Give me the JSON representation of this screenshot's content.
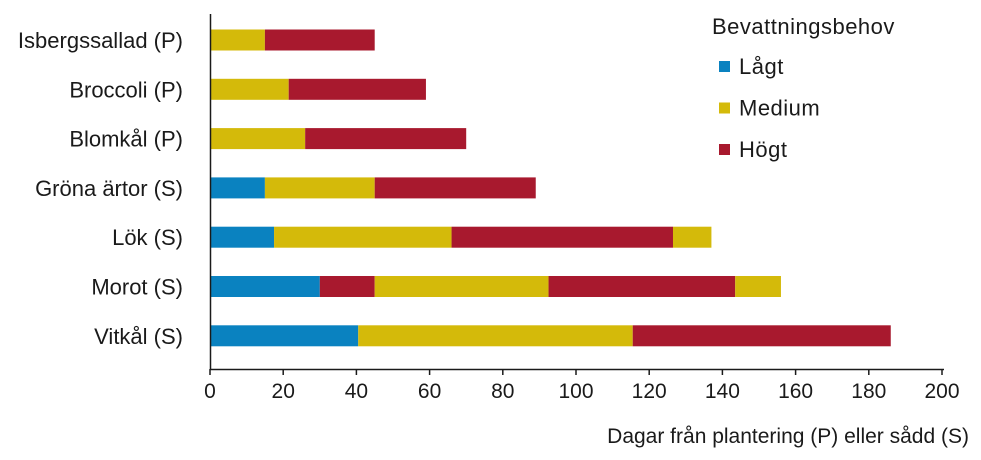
{
  "chart_data": {
    "type": "bar",
    "orientation": "horizontal",
    "stacked": true,
    "categories": [
      "Isbergssallad (P)",
      "Broccoli (P)",
      "Blomkål (P)",
      "Gröna ärtor (S)",
      "Lök (S)",
      "Morot (S)",
      "Vitkål (S)"
    ],
    "xlabel": "Dagar från plantering (P) eller sådd (S)",
    "xlim": [
      0,
      200
    ],
    "xticks": [
      0,
      20,
      40,
      60,
      80,
      100,
      120,
      140,
      160,
      180,
      200
    ],
    "grid": false,
    "legend": {
      "title": "Bevattningsbehov",
      "position": "top-right",
      "entries": [
        {
          "label": "Lågt",
          "color": "#0a82c0"
        },
        {
          "label": "Medium",
          "color": "#d4ba0a"
        },
        {
          "label": "Högt",
          "color": "#a8192e"
        }
      ]
    },
    "bars": [
      {
        "category": "Isbergssallad (P)",
        "segments": [
          {
            "level": "Medium",
            "start": 0,
            "end": 15
          },
          {
            "level": "Högt",
            "start": 15,
            "end": 45
          }
        ]
      },
      {
        "category": "Broccoli (P)",
        "segments": [
          {
            "level": "Medium",
            "start": 0,
            "end": 21.5
          },
          {
            "level": "Högt",
            "start": 21.5,
            "end": 59
          }
        ]
      },
      {
        "category": "Blomkål (P)",
        "segments": [
          {
            "level": "Medium",
            "start": 0,
            "end": 26
          },
          {
            "level": "Högt",
            "start": 26,
            "end": 70
          }
        ]
      },
      {
        "category": "Gröna ärtor (S)",
        "segments": [
          {
            "level": "Lågt",
            "start": 0,
            "end": 15
          },
          {
            "level": "Medium",
            "start": 15,
            "end": 45
          },
          {
            "level": "Högt",
            "start": 45,
            "end": 89
          }
        ]
      },
      {
        "category": "Lök (S)",
        "segments": [
          {
            "level": "Lågt",
            "start": 0,
            "end": 17.5
          },
          {
            "level": "Medium",
            "start": 17.5,
            "end": 66
          },
          {
            "level": "Högt",
            "start": 66,
            "end": 126.5
          },
          {
            "level": "Medium",
            "start": 126.5,
            "end": 137
          }
        ]
      },
      {
        "category": "Morot (S)",
        "segments": [
          {
            "level": "Lågt",
            "start": 0,
            "end": 30
          },
          {
            "level": "Högt",
            "start": 30,
            "end": 45
          },
          {
            "level": "Medium",
            "start": 45,
            "end": 92.5
          },
          {
            "level": "Högt",
            "start": 92.5,
            "end": 143.5
          },
          {
            "level": "Medium",
            "start": 143.5,
            "end": 156
          }
        ]
      },
      {
        "category": "Vitkål (S)",
        "segments": [
          {
            "level": "Lågt",
            "start": 0,
            "end": 40.5
          },
          {
            "level": "Medium",
            "start": 40.5,
            "end": 115.5
          },
          {
            "level": "Högt",
            "start": 115.5,
            "end": 186
          }
        ]
      }
    ]
  }
}
